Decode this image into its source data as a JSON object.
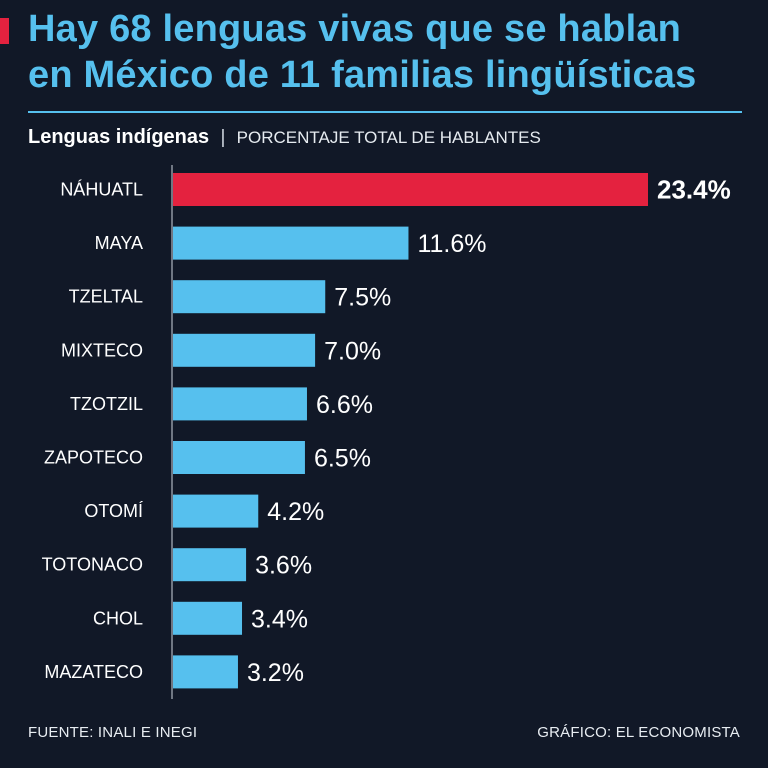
{
  "header": {
    "title_line1": "Hay 68 lenguas vivas que se hablan",
    "title_line2": "en México de 11 familias lingüísticas",
    "subtitle_bold": "Lenguas indígenas",
    "subtitle_separator": "|",
    "subtitle_light": "PORCENTAJE TOTAL DE HABLANTES"
  },
  "colors": {
    "background": "#111827",
    "bar": "#56c0ee",
    "highlight": "#e4223f",
    "title": "#56c0ee"
  },
  "chart_data": {
    "type": "bar",
    "orientation": "horizontal",
    "title": "Lenguas indígenas",
    "subtitle": "PORCENTAJE TOTAL DE HABLANTES",
    "categories": [
      "NÁHUATL",
      "MAYA",
      "TZELTAL",
      "MIXTECO",
      "TZOTZIL",
      "ZAPOTECO",
      "OTOMÍ",
      "TOTONACO",
      "CHOL",
      "MAZATECO"
    ],
    "values": [
      23.4,
      11.6,
      7.5,
      7.0,
      6.6,
      6.5,
      4.2,
      3.6,
      3.4,
      3.2
    ],
    "labels": [
      "23.4%",
      "11.6%",
      "7.5%",
      "7.0%",
      "6.6%",
      "6.5%",
      "4.2%",
      "3.6%",
      "3.4%",
      "3.2%"
    ],
    "highlight_index": 0,
    "xlim": [
      0,
      23.4
    ],
    "unit": "%"
  },
  "footer": {
    "source": "FUENTE: INALI E INEGI",
    "credit": "GRÁFICO: EL ECONOMISTA"
  }
}
